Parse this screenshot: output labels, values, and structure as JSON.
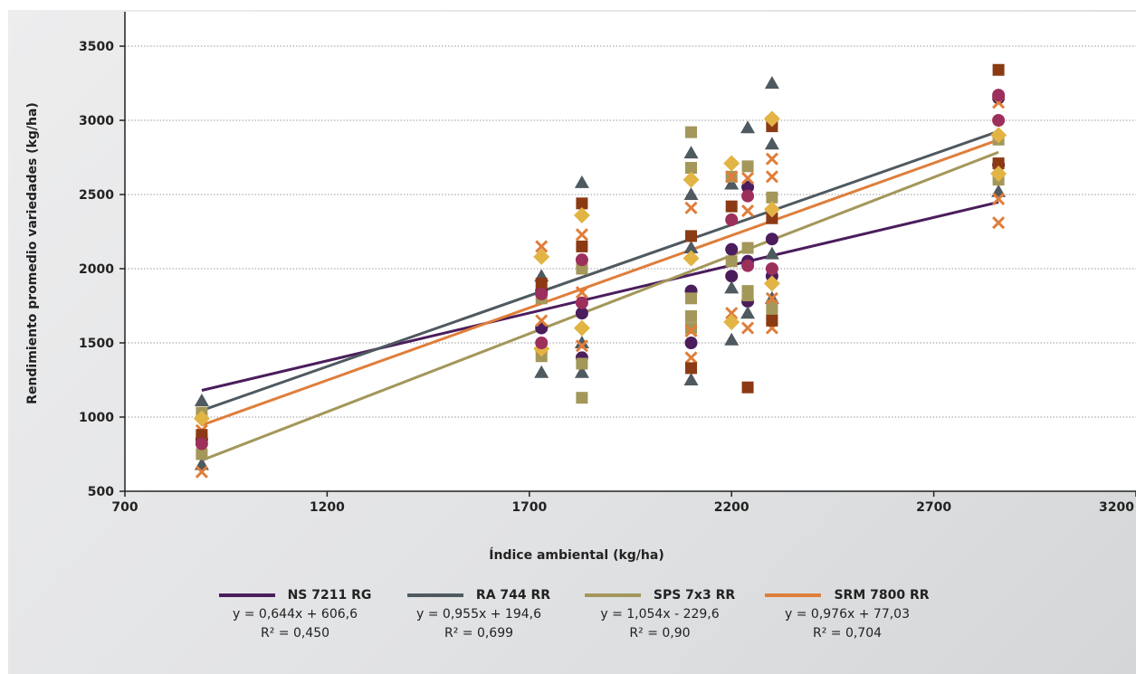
{
  "chart_data": {
    "type": "scatter",
    "xlabel": "Índice ambiental (kg/ha)",
    "ylabel": "Rendimiento promedio variedades (kg/ha)",
    "xlim": [
      700,
      3200
    ],
    "ylim": [
      500,
      3500
    ],
    "xticks": [
      700,
      1200,
      1700,
      2200,
      2700,
      3200
    ],
    "yticks": [
      500,
      1000,
      1500,
      2000,
      2500,
      3000,
      3500
    ],
    "grid": "horizontal dotted",
    "legend_position": "bottom",
    "series": [
      {
        "name": "NS 7211 RG",
        "color": "#4b1d5c",
        "equation": "y = 0,644x + 606,6",
        "r2": "R² = 0,450",
        "trend": {
          "slope": 0.644,
          "intercept": 606.6,
          "x_range": [
            890,
            2860
          ]
        },
        "points": [
          [
            890,
            850
          ],
          [
            1730,
            1600
          ],
          [
            1730,
            1850
          ],
          [
            1830,
            1400
          ],
          [
            1830,
            1700
          ],
          [
            2100,
            1500
          ],
          [
            2100,
            1850
          ],
          [
            2200,
            1950
          ],
          [
            2200,
            2130
          ],
          [
            2240,
            1780
          ],
          [
            2240,
            2050
          ],
          [
            2240,
            2550
          ],
          [
            2300,
            1950
          ],
          [
            2300,
            2200
          ],
          [
            2860,
            2700
          ],
          [
            2860,
            3150
          ]
        ]
      },
      {
        "name": "RA 744 RR",
        "color": "#4f5960",
        "equation": "y = 0,955x + 194,6",
        "r2": "R² = 0,699",
        "trend": {
          "slope": 0.955,
          "intercept": 194.6,
          "x_range": [
            890,
            2860
          ]
        },
        "points": [
          [
            890,
            1110
          ],
          [
            890,
            680
          ],
          [
            1730,
            1300
          ],
          [
            1730,
            1950
          ],
          [
            1830,
            1300
          ],
          [
            1830,
            2580
          ],
          [
            1830,
            1500
          ],
          [
            2100,
            1250
          ],
          [
            2100,
            2780
          ],
          [
            2100,
            2500
          ],
          [
            2100,
            2140
          ],
          [
            2200,
            1520
          ],
          [
            2200,
            2570
          ],
          [
            2200,
            1870
          ],
          [
            2240,
            1700
          ],
          [
            2240,
            2950
          ],
          [
            2300,
            3250
          ],
          [
            2300,
            2840
          ],
          [
            2300,
            2100
          ],
          [
            2300,
            1800
          ],
          [
            2860,
            2520
          ]
        ]
      },
      {
        "name": "SPS 7x3 RR",
        "color": "#a3975a",
        "equation": "y = 1,054x - 229,6",
        "r2": "R² = 0,90",
        "trend": {
          "slope": 1.054,
          "intercept": -229.6,
          "x_range": [
            890,
            2860
          ]
        },
        "points": [
          [
            890,
            750
          ],
          [
            890,
            1030
          ],
          [
            1730,
            1410
          ],
          [
            1730,
            1800
          ],
          [
            1830,
            1130
          ],
          [
            1830,
            1360
          ],
          [
            1830,
            2000
          ],
          [
            2100,
            2920
          ],
          [
            2100,
            2680
          ],
          [
            2100,
            1680
          ],
          [
            2100,
            1600
          ],
          [
            2100,
            1800
          ],
          [
            2200,
            2620
          ],
          [
            2200,
            2050
          ],
          [
            2240,
            2690
          ],
          [
            2240,
            2140
          ],
          [
            2240,
            1850
          ],
          [
            2240,
            1820
          ],
          [
            2300,
            2990
          ],
          [
            2300,
            2480
          ],
          [
            2300,
            1750
          ],
          [
            2300,
            1700
          ],
          [
            2860,
            2600
          ],
          [
            2860,
            2870
          ]
        ]
      },
      {
        "name": "SRM 7800 RR",
        "color": "#df7e3a",
        "equation": "y = 0,976x + 77,03",
        "r2": "R² = 0,704",
        "trend": {
          "slope": 0.976,
          "intercept": 77.03,
          "x_range": [
            890,
            2860
          ]
        },
        "points": [
          [
            890,
            630
          ],
          [
            890,
            910
          ],
          [
            1730,
            1470
          ],
          [
            1730,
            2150
          ],
          [
            1730,
            1650
          ],
          [
            1830,
            1480
          ],
          [
            1830,
            1840
          ],
          [
            1830,
            2230
          ],
          [
            2100,
            1400
          ],
          [
            2100,
            1580
          ],
          [
            2100,
            2410
          ],
          [
            2200,
            1700
          ],
          [
            2200,
            2620
          ],
          [
            2240,
            1600
          ],
          [
            2240,
            2610
          ],
          [
            2240,
            2390
          ],
          [
            2300,
            1600
          ],
          [
            2300,
            1800
          ],
          [
            2300,
            2740
          ],
          [
            2300,
            2620
          ],
          [
            2860,
            2310
          ],
          [
            2860,
            2470
          ],
          [
            2860,
            3120
          ]
        ]
      },
      {
        "name": "",
        "color": "#8b3a14",
        "points": [
          [
            890,
            880
          ],
          [
            1730,
            1900
          ],
          [
            1830,
            2440
          ],
          [
            1830,
            2150
          ],
          [
            2100,
            1330
          ],
          [
            2100,
            2220
          ],
          [
            2200,
            2420
          ],
          [
            2240,
            1200
          ],
          [
            2300,
            1650
          ],
          [
            2300,
            2340
          ],
          [
            2300,
            2960
          ],
          [
            2860,
            3340
          ],
          [
            2860,
            2710
          ]
        ]
      },
      {
        "name": "",
        "color": "#e2b443",
        "points": [
          [
            890,
            990
          ],
          [
            1730,
            2080
          ],
          [
            1730,
            1460
          ],
          [
            1830,
            2360
          ],
          [
            1830,
            1600
          ],
          [
            2100,
            2600
          ],
          [
            2100,
            2070
          ],
          [
            2200,
            2710
          ],
          [
            2200,
            1640
          ],
          [
            2300,
            3010
          ],
          [
            2300,
            2400
          ],
          [
            2300,
            1900
          ],
          [
            2860,
            2900
          ],
          [
            2860,
            2640
          ]
        ]
      },
      {
        "name": "",
        "color": "#9d2f5c",
        "points": [
          [
            890,
            820
          ],
          [
            1730,
            1830
          ],
          [
            1730,
            1500
          ],
          [
            1830,
            2060
          ],
          [
            1830,
            1770
          ],
          [
            2200,
            2330
          ],
          [
            2240,
            2490
          ],
          [
            2240,
            2020
          ],
          [
            2300,
            2000
          ],
          [
            2860,
            3000
          ],
          [
            2860,
            3170
          ]
        ]
      }
    ]
  }
}
